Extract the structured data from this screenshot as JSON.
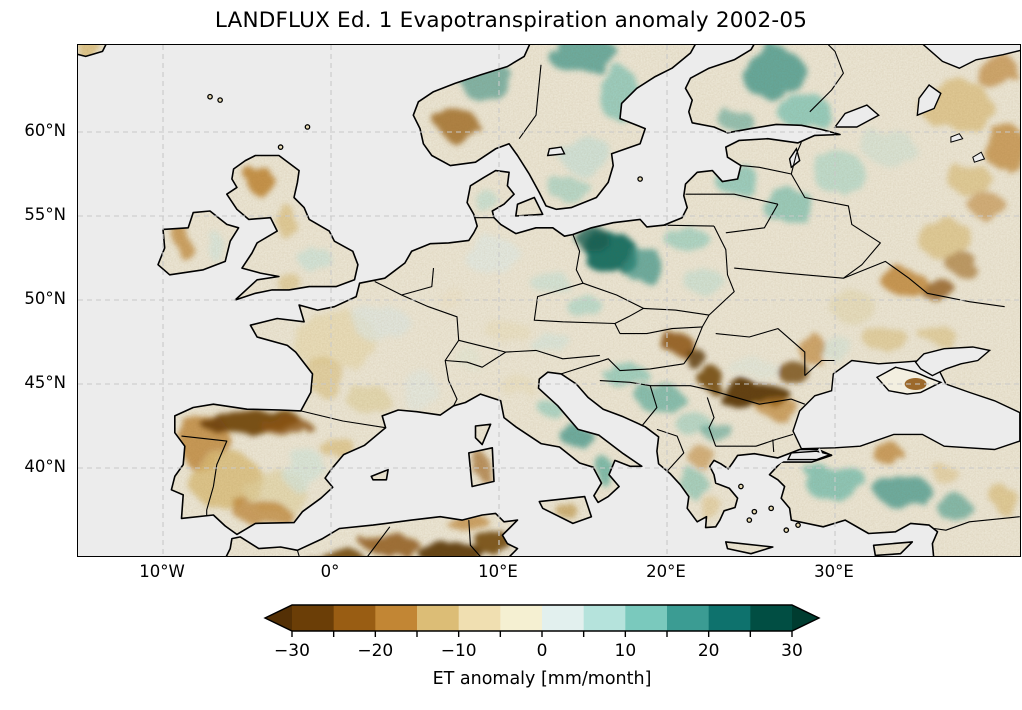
{
  "figure": {
    "title": "LANDFLUX Ed. 1 Evapotranspiration anomaly 2002-05",
    "background_color": "#ffffff"
  },
  "map": {
    "ocean_color": "#ececec",
    "land_base_color": "#f3efe0",
    "coastline_color": "#000000",
    "border_color": "#000000",
    "gridline_color": "#c9c9c9",
    "extent": {
      "lon_min": -15.1,
      "lon_max": 41.0,
      "lat_min": 34.8,
      "lat_max": 65.2
    },
    "x_ticks": [
      {
        "label": "10°W",
        "lon": -10
      },
      {
        "label": "0°",
        "lon": 0
      },
      {
        "label": "10°E",
        "lon": 10
      },
      {
        "label": "20°E",
        "lon": 20
      },
      {
        "label": "30°E",
        "lon": 30
      }
    ],
    "y_ticks": [
      {
        "label": "60°N",
        "lat": 60
      },
      {
        "label": "55°N",
        "lat": 55
      },
      {
        "label": "50°N",
        "lat": 50
      },
      {
        "label": "45°N",
        "lat": 45
      },
      {
        "label": "40°N",
        "lat": 40
      }
    ]
  },
  "colorbar": {
    "label": "ET anomaly [mm/month]",
    "tick_labels": [
      "−30",
      "−20",
      "−10",
      "0",
      "10",
      "20",
      "30"
    ],
    "tick_values": [
      -30,
      -20,
      -10,
      0,
      10,
      20,
      30
    ],
    "minor_tick_step": 5,
    "levels": [
      -30,
      -25,
      -20,
      -15,
      -10,
      -5,
      0,
      5,
      10,
      15,
      20,
      25,
      30
    ],
    "band_colors": [
      "#6b3e07",
      "#995d13",
      "#c28634",
      "#dcbd76",
      "#f0dfb1",
      "#f5f0d2",
      "#e2f0ee",
      "#b5e3dc",
      "#7ac9bd",
      "#3b9c93",
      "#0e726d",
      "#014e43"
    ],
    "under_arrow_color": "#543005",
    "over_arrow_color": "#003c30",
    "outline_color": "#000000"
  },
  "chart_data": {
    "type": "heatmap",
    "title": "LANDFLUX Ed. 1 Evapotranspiration anomaly 2002-05",
    "variable": "ET anomaly",
    "units": "mm/month",
    "period": "2002-05",
    "colormap": "BrBG diverging (brown = negative, teal = positive)",
    "value_range": [
      -30,
      30
    ],
    "region": "Europe / North Africa / Anatolia, PlateCarree lon -15..41, lat 35..65",
    "grid": "dashed graticule every 10° lon / 5° lat",
    "legend_position": "horizontal colorbar below map",
    "notable_anomalies": [
      {
        "region": "Western Poland",
        "sign": "positive",
        "approx_mm_month": 25
      },
      {
        "region": "Scandinavia / Finland",
        "sign": "positive",
        "approx_mm_month": 12
      },
      {
        "region": "Turkey (Anatolia)",
        "sign": "positive",
        "approx_mm_month": 12
      },
      {
        "region": "Balkans (Serbia/Bosnia/Croatia)",
        "sign": "positive",
        "approx_mm_month": 10
      },
      {
        "region": "Southern Romania (Wallachia)",
        "sign": "negative",
        "approx_mm_month": -30
      },
      {
        "region": "Eastern Hungary / W Romania",
        "sign": "negative",
        "approx_mm_month": -25
      },
      {
        "region": "Northern Spain band",
        "sign": "negative",
        "approx_mm_month": -28
      },
      {
        "region": "Atlas / North Africa",
        "sign": "negative",
        "approx_mm_month": -30
      },
      {
        "region": "Eastern Ukraine (Kharkiv area)",
        "sign": "negative",
        "approx_mm_month": -22
      },
      {
        "region": "Southern Norway patch",
        "sign": "negative",
        "approx_mm_month": -15
      },
      {
        "region": "NE Russia (top-right)",
        "sign": "negative",
        "approx_mm_month": -12
      },
      {
        "region": "Scotland / W Ireland",
        "sign": "negative",
        "approx_mm_month": -12
      },
      {
        "region": "SE England / Germany / Alps",
        "sign": "positive",
        "approx_mm_month": 5
      }
    ]
  }
}
